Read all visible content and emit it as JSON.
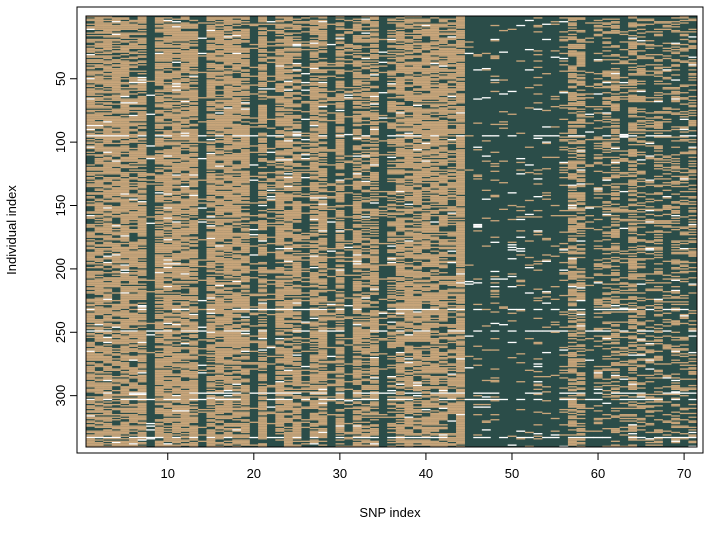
{
  "chart_data": {
    "type": "heatmap",
    "title": "",
    "xlabel": "SNP index",
    "ylabel": "Individual index",
    "x_ticks": [
      "10",
      "20",
      "30",
      "40",
      "50",
      "60",
      "70"
    ],
    "y_ticks": [
      "50",
      "100",
      "150",
      "200",
      "250",
      "300"
    ],
    "x_tick_values": [
      10,
      20,
      30,
      40,
      50,
      60,
      70
    ],
    "y_tick_values": [
      50,
      100,
      150,
      200,
      250,
      300
    ],
    "n_snps": 71,
    "n_individuals": 340,
    "xlim": [
      0.5,
      71.5
    ],
    "ylim": [
      0.5,
      340.5
    ],
    "y_reversed": true,
    "colors": {
      "major_genotype": "#2b4d49",
      "minor_genotype": "#c8a57a",
      "missing": "#ffffff"
    },
    "snp_minor_allele_frequency": [
      0.7,
      0.7,
      0.72,
      0.68,
      0.78,
      0.62,
      0.76,
      0.05,
      0.72,
      0.75,
      0.74,
      0.73,
      0.76,
      0.06,
      0.8,
      0.74,
      0.78,
      0.72,
      0.75,
      0.12,
      0.72,
      0.15,
      0.7,
      0.74,
      0.65,
      0.22,
      0.7,
      0.72,
      0.1,
      0.7,
      0.12,
      0.72,
      0.55,
      0.7,
      0.08,
      0.45,
      0.72,
      0.7,
      0.74,
      0.72,
      0.7,
      0.68,
      0.55,
      0.92,
      0.04,
      0.06,
      0.04,
      0.1,
      0.05,
      0.04,
      0.04,
      0.05,
      0.15,
      0.04,
      0.06,
      0.12,
      0.6,
      0.55,
      0.08,
      0.22,
      0.3,
      0.45,
      0.2,
      0.55,
      0.35,
      0.25,
      0.4,
      0.2,
      0.4,
      0.3,
      0.35
    ],
    "missing_rate": 0.02
  }
}
